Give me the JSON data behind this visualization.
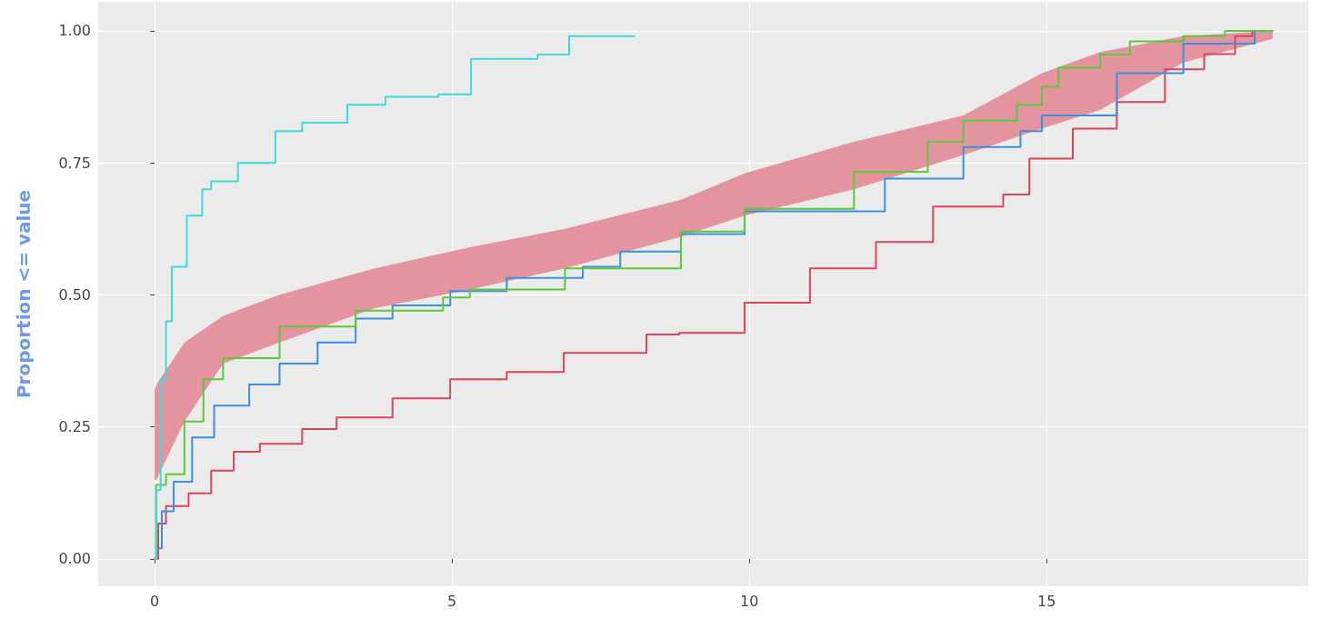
{
  "chart_data": {
    "type": "step",
    "ylabel": "Proportion <= value",
    "xlim": [
      -0.95,
      19.4
    ],
    "ylim": [
      -0.052,
      1.055
    ],
    "xticks": [
      0,
      5,
      10,
      15
    ],
    "yticks": [
      {
        "value": 0,
        "label": "0.00"
      },
      {
        "value": 0.25,
        "label": "0.25"
      },
      {
        "value": 0.5,
        "label": "0.50"
      },
      {
        "value": 0.75,
        "label": "0.75"
      },
      {
        "value": 1,
        "label": "1.00"
      }
    ],
    "grid": true,
    "marker": "none",
    "line_style": "solid",
    "series": [
      {
        "color": "#e3949f",
        "x": [
          0,
          0.03,
          0.5,
          1.15,
          2.1,
          3.7,
          5.3,
          6.9,
          8.85,
          9.92,
          11.76,
          13.6,
          14.92,
          15.9,
          17.3,
          18.8
        ],
        "values": [
          null,
          null,
          null,
          null,
          null,
          null,
          null,
          null,
          null,
          null,
          null,
          null,
          null,
          null,
          null,
          null
        ],
        "lower": [
          0.15,
          0.15,
          0.26,
          0.37,
          0.41,
          0.475,
          0.51,
          0.55,
          0.61,
          0.65,
          0.7,
          0.765,
          0.815,
          0.85,
          0.94,
          0.985
        ],
        "upper": [
          0.32,
          0.33,
          0.41,
          0.46,
          0.5,
          0.55,
          0.59,
          0.625,
          0.68,
          0.73,
          0.79,
          0.84,
          0.92,
          0.96,
          0.99,
          1.0
        ]
      },
      {
        "color": "#d9465e",
        "x": [
          0,
          0.06,
          0.19,
          0.57,
          0.95,
          1.33,
          1.77,
          2.48,
          3.06,
          4.0,
          4.97,
          5.92,
          6.88,
          8.27,
          8.82,
          9.92,
          11.02,
          12.13,
          13.09,
          14.27,
          14.71,
          15.44,
          16.18,
          16.99,
          17.65,
          18.17,
          18.46,
          18.8
        ],
        "values": [
          0,
          0.067,
          0.1,
          0.124,
          0.167,
          0.203,
          0.218,
          0.246,
          0.268,
          0.304,
          0.34,
          0.354,
          0.39,
          0.425,
          0.428,
          0.485,
          0.55,
          0.6,
          0.667,
          0.69,
          0.758,
          0.815,
          0.865,
          0.927,
          0.956,
          0.99,
          1.0,
          1.0
        ]
      },
      {
        "color": "#3b8fe0",
        "x": [
          0,
          0.03,
          0.12,
          0.32,
          0.63,
          1.0,
          1.59,
          2.1,
          2.74,
          3.38,
          4.0,
          4.97,
          5.92,
          7.2,
          7.83,
          8.85,
          9.92,
          12.28,
          13.6,
          14.56,
          14.92,
          16.18,
          17.3,
          18.5
        ],
        "values": [
          0,
          0.02,
          0.09,
          0.146,
          0.23,
          0.29,
          0.33,
          0.37,
          0.41,
          0.455,
          0.48,
          0.507,
          0.532,
          0.553,
          0.582,
          0.615,
          0.658,
          0.72,
          0.78,
          0.81,
          0.84,
          0.92,
          0.976,
          1.0
        ]
      },
      {
        "color": "#5cc83a",
        "x": [
          0,
          0.02,
          0.19,
          0.5,
          0.82,
          1.15,
          2.1,
          3.38,
          4.85,
          5.3,
          6.9,
          8.85,
          9.92,
          11.76,
          13.0,
          13.6,
          14.5,
          14.92,
          15.2,
          15.9,
          16.4,
          17.3,
          18.0,
          18.8
        ],
        "values": [
          0,
          0.14,
          0.16,
          0.26,
          0.34,
          0.38,
          0.44,
          0.47,
          0.495,
          0.51,
          0.55,
          0.62,
          0.663,
          0.733,
          0.79,
          0.83,
          0.86,
          0.894,
          0.93,
          0.955,
          0.98,
          0.99,
          1.0,
          1.0
        ]
      },
      {
        "color": "#3fd9d9",
        "x": [
          0,
          0.03,
          0.1,
          0.19,
          0.29,
          0.54,
          0.8,
          0.95,
          1.4,
          2.03,
          2.48,
          3.24,
          3.88,
          4.77,
          5.32,
          6.44,
          6.97,
          8.06
        ],
        "values": [
          0,
          0.13,
          0.34,
          0.45,
          0.553,
          0.65,
          0.7,
          0.715,
          0.75,
          0.81,
          0.826,
          0.86,
          0.875,
          0.88,
          0.947,
          0.955,
          0.99,
          0.99
        ]
      }
    ]
  }
}
